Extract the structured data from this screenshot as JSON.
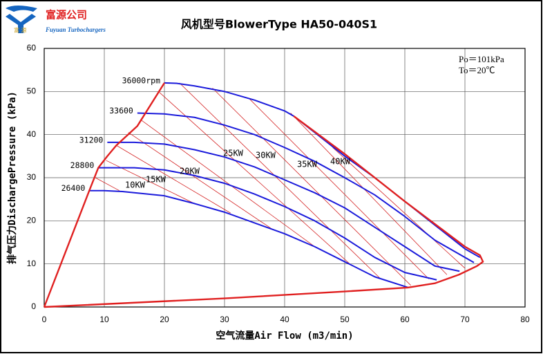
{
  "logo": {
    "name": "富源公司",
    "english": "Fuyuan Turbochargers",
    "chars": "富 源"
  },
  "chart_data": {
    "type": "line",
    "title": "风机型号BlowerType HA50-040S1",
    "xlabel": "空气流量Air Flow (m3/min)",
    "ylabel": "排气压力DischargePressure (kPa)",
    "xlim": [
      0,
      80
    ],
    "xticks": [
      0,
      10,
      20,
      30,
      40,
      50,
      60,
      70,
      80
    ],
    "ylim": [
      0,
      60
    ],
    "yticks": [
      0,
      10,
      20,
      30,
      40,
      50,
      60
    ],
    "grid": true,
    "conditions": [
      "Po＝101kPa",
      "To＝20℃"
    ],
    "series": [
      {
        "name": "26400",
        "color": "#1a1adb",
        "x": [
          7.5,
          10,
          13,
          20,
          25,
          30,
          35,
          40,
          45,
          50,
          55,
          60.6
        ],
        "values": [
          27,
          27,
          26.8,
          25.8,
          24,
          22,
          19.5,
          17,
          14,
          10.5,
          7,
          4.5
        ]
      },
      {
        "name": "28800",
        "color": "#1a1adb",
        "x": [
          9,
          12,
          15,
          20,
          25,
          30,
          35,
          40,
          45,
          50,
          55,
          60,
          65.3
        ],
        "values": [
          32.3,
          32.3,
          32.3,
          31.8,
          30.5,
          28.7,
          26.2,
          23.3,
          20,
          16,
          11.5,
          8,
          6.3
        ]
      },
      {
        "name": "31200",
        "color": "#1a1adb",
        "x": [
          10.5,
          15,
          20,
          25,
          30,
          35,
          40,
          45,
          50,
          55,
          60,
          65,
          69.1
        ],
        "values": [
          38.2,
          38.2,
          37.8,
          36.5,
          34.8,
          32.5,
          29.5,
          26.5,
          23,
          18.5,
          14,
          9.5,
          8.3
        ]
      },
      {
        "name": "33600",
        "color": "#1a1adb",
        "x": [
          15.5,
          20,
          25,
          30,
          35,
          40,
          45,
          50,
          55,
          60,
          65,
          71.5
        ],
        "values": [
          45,
          44.8,
          44,
          42.2,
          40,
          37,
          33.8,
          30,
          26,
          21,
          15.5,
          10.3
        ]
      },
      {
        "name": "36000rpm",
        "color": "#1a1adb",
        "x": [
          20,
          22,
          25,
          30,
          35,
          40,
          41.5,
          45,
          50,
          55,
          60,
          65,
          70,
          72.5
        ],
        "values": [
          52,
          51.9,
          51.3,
          50,
          48,
          45.5,
          44.3,
          40.5,
          35,
          30,
          24.5,
          19,
          13.5,
          11.5
        ]
      },
      {
        "color": "#e02020",
        "x": [
          0,
          7.5,
          9,
          10.5,
          12,
          15.5,
          20
        ],
        "values": [
          0,
          27,
          32.3,
          35,
          37.5,
          42,
          52
        ]
      },
      {
        "color": "#e02020",
        "x": [
          41.5,
          50,
          60,
          70,
          72.5,
          73,
          72,
          69,
          65,
          60.5,
          50,
          30,
          0
        ],
        "values": [
          44.3,
          35.5,
          24.5,
          14,
          12,
          10.5,
          9.5,
          7.5,
          5.5,
          4.5,
          3.6,
          2,
          0
        ]
      }
    ],
    "power_lines": {
      "color": "#d42020",
      "lines": [
        {
          "x": [
            8.5,
            12.5
          ],
          "values": [
            30,
            27
          ]
        },
        {
          "x": [
            10.3,
            25
          ],
          "values": [
            34,
            24
          ]
        },
        {
          "x": [
            12,
            31
          ],
          "values": [
            37.5,
            21.8
          ]
        },
        {
          "x": [
            14,
            38
          ],
          "values": [
            40.5,
            18
          ]
        },
        {
          "x": [
            16,
            45
          ],
          "values": [
            43.5,
            14
          ]
        },
        {
          "x": [
            19,
            51
          ],
          "values": [
            50,
            9.8
          ]
        },
        {
          "x": [
            22.5,
            56
          ],
          "values": [
            52,
            6.5
          ]
        },
        {
          "x": [
            28,
            61
          ],
          "values": [
            50.8,
            5
          ]
        },
        {
          "x": [
            34,
            64
          ],
          "values": [
            48.5,
            6.5
          ]
        },
        {
          "x": [
            41,
            67
          ],
          "values": [
            45,
            7.5
          ]
        },
        {
          "x": [
            48,
            70
          ],
          "values": [
            37,
            9
          ]
        }
      ]
    },
    "power_labels": [
      "10KW",
      "15KW",
      "20KW",
      "25KW",
      "30KW",
      "35KW",
      "40KW"
    ]
  }
}
